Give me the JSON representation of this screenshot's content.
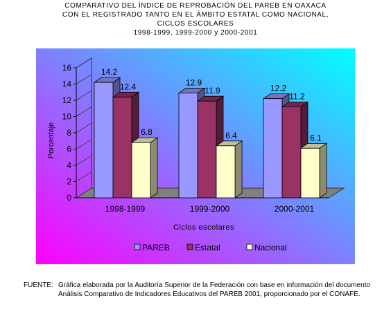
{
  "title": {
    "line1": "COMPARATIVO DEL ÍNDICE DE REPROBACIÓN DEL PAREB EN OAXACA",
    "line2": "CON EL REGISTRADO TANTO EN EL ÁMBITO ESTATAL COMO NACIONAL,",
    "line3": "CICLOS ESCOLARES",
    "line4": "1998-1999, 1999-2000 y 2000-2001"
  },
  "chart_data": {
    "type": "bar",
    "title": "COMPARATIVO DEL ÍNDICE DE REPROBACIÓN DEL PAREB EN OAXACA CON EL REGISTRADO TANTO EN EL ÁMBITO ESTATAL COMO NACIONAL, CICLOS ESCOLARES 1998-1999, 1999-2000 y 2000-2001",
    "xlabel": "Ciclos escolares",
    "ylabel": "Porcentaje",
    "ylim": [
      0,
      16
    ],
    "yticks": [
      0,
      2,
      4,
      6,
      8,
      10,
      12,
      14,
      16
    ],
    "categories": [
      "1998-1999",
      "1999-2000",
      "2000-2001"
    ],
    "series": [
      {
        "name": "PAREB",
        "values": [
          14.2,
          12.9,
          12.2
        ],
        "color": "#9999ff"
      },
      {
        "name": "Estatal",
        "values": [
          12.4,
          11.9,
          11.2
        ],
        "color": "#993366"
      },
      {
        "name": "Nacional",
        "values": [
          6.8,
          6.4,
          6.1
        ],
        "color": "#ffffcc"
      }
    ],
    "data_labels": [
      [
        "14.2",
        "12.4",
        "6.8"
      ],
      [
        "12.9",
        "11.9",
        "6.4"
      ],
      [
        "12.2",
        "11.2",
        "6.1"
      ]
    ],
    "legend_position": "bottom",
    "grid": false,
    "background_gradient": [
      "#ff00ff",
      "#00ffff"
    ]
  },
  "source": {
    "label": "FUENTE:",
    "text": "Gráfica elaborada por la Auditoría Superior de la Federación con base en información del documento Análisis Comparativo de Indicadores Educativos del PAREB 2001, proporcionado por el CONAFE."
  }
}
